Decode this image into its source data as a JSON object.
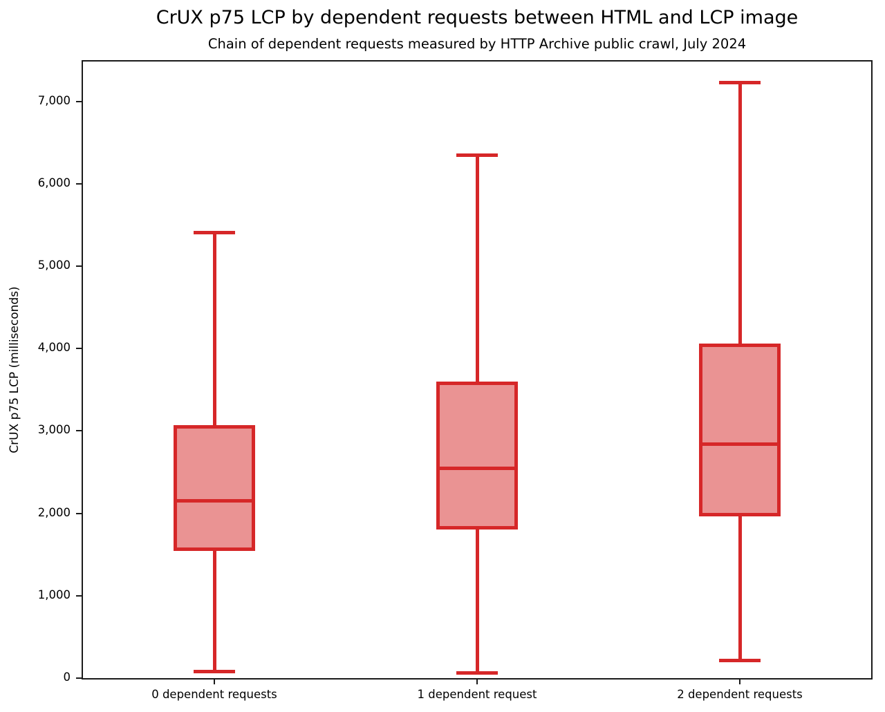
{
  "chart_data": {
    "type": "boxplot",
    "title": "CrUX p75 LCP by dependent requests between HTML and LCP image",
    "subtitle": "Chain of dependent requests measured by HTTP Archive public crawl, July 2024",
    "ylabel": "CrUX p75 LCP (milliseconds)",
    "xlabel": "",
    "ylim": [
      0,
      7484
    ],
    "yticks": [
      0,
      1000,
      2000,
      3000,
      4000,
      5000,
      6000,
      7000
    ],
    "ytick_labels": [
      "0",
      "1,000",
      "2,000",
      "3,000",
      "4,000",
      "5,000",
      "6,000",
      "7,000"
    ],
    "categories": [
      "0 dependent requests",
      "1 dependent request",
      "2 dependent requests"
    ],
    "series": [
      {
        "category": "0 dependent requests",
        "whisker_low": 80,
        "q1": 1540,
        "median": 2150,
        "q3": 3070,
        "whisker_high": 5410
      },
      {
        "category": "1 dependent request",
        "whisker_low": 65,
        "q1": 1800,
        "median": 2550,
        "q3": 3600,
        "whisker_high": 6350
      },
      {
        "category": "2 dependent requests",
        "whisker_low": 215,
        "q1": 1960,
        "median": 2840,
        "q3": 4060,
        "whisker_high": 7230
      }
    ],
    "grid": false,
    "legend": "none",
    "colors": {
      "box_stroke": "#d62728",
      "box_fill": "#ea9393",
      "axis": "#1a1a1a",
      "background": "#ffffff"
    }
  }
}
